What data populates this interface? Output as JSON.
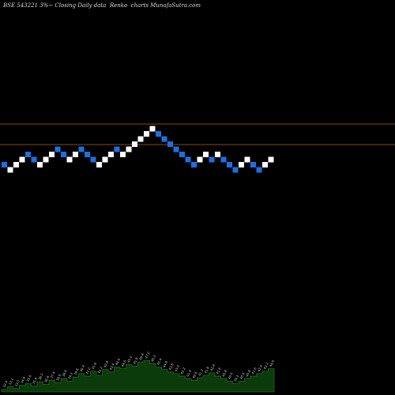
{
  "header": {
    "symbol": "BSE 543221 3%",
    "middle": "Closing Daily data",
    "type_label": "Renko",
    "site": "charts MunafaSutra.com"
  },
  "colors": {
    "background": "#000000",
    "up_brick": "#ffffff",
    "down_brick": "#1e6fe0",
    "level_line": "#8a4a12",
    "volume_fill": "#0b3a0b",
    "volume_edge": "#1e6a1e",
    "volume_label": "#cfcfcf"
  },
  "chart_data": {
    "type": "renko",
    "grid": false,
    "brick_directions": [
      "down",
      "up",
      "up",
      "up",
      "down",
      "down",
      "up",
      "up",
      "up",
      "down",
      "down",
      "up",
      "up",
      "down",
      "down",
      "down",
      "up",
      "up",
      "up",
      "down",
      "up",
      "up",
      "up",
      "up",
      "up",
      "up",
      "down",
      "down",
      "down",
      "down",
      "down",
      "down",
      "down",
      "up",
      "up",
      "down",
      "up",
      "down",
      "down",
      "down",
      "up",
      "up",
      "down",
      "down",
      "up",
      "up"
    ],
    "brick_levels": [
      0,
      -1,
      0,
      1,
      2,
      1,
      0,
      1,
      2,
      3,
      2,
      1,
      2,
      3,
      2,
      1,
      0,
      1,
      2,
      3,
      2,
      3,
      4,
      5,
      6,
      7,
      6,
      5,
      4,
      3,
      2,
      1,
      0,
      1,
      2,
      1,
      2,
      1,
      0,
      -1,
      0,
      1,
      0,
      -1,
      0,
      1
    ],
    "horizontal_levels": [
      7,
      3
    ],
    "volume_labels": [
      "32.9",
      "33.1",
      "33.5",
      "34.6",
      "35.0",
      "35.6",
      "36.2",
      "36.8",
      "37.4",
      "38.0",
      "38.6",
      "39.2",
      "39.8",
      "40.4",
      "41.0",
      "41.6",
      "42.2",
      "42.8",
      "43.4",
      "44.0",
      "44.6",
      "45.2",
      "45.8",
      "46.4",
      "47.0",
      "46.2",
      "45.4",
      "44.6",
      "43.8",
      "43.0",
      "42.2",
      "41.4",
      "40.6",
      "41.2",
      "41.8",
      "42.4",
      "41.6",
      "40.8",
      "40.0",
      "39.2",
      "40.0",
      "40.8",
      "41.6",
      "42.4",
      "43.2",
      "44.0"
    ],
    "volume_values": [
      3,
      6,
      4,
      8,
      10,
      7,
      12,
      9,
      14,
      11,
      16,
      13,
      18,
      22,
      19,
      25,
      20,
      27,
      24,
      30,
      28,
      33,
      31,
      36,
      38,
      34,
      30,
      27,
      24,
      22,
      19,
      16,
      14,
      17,
      20,
      23,
      19,
      16,
      13,
      10,
      13,
      16,
      19,
      22,
      25,
      28
    ]
  }
}
